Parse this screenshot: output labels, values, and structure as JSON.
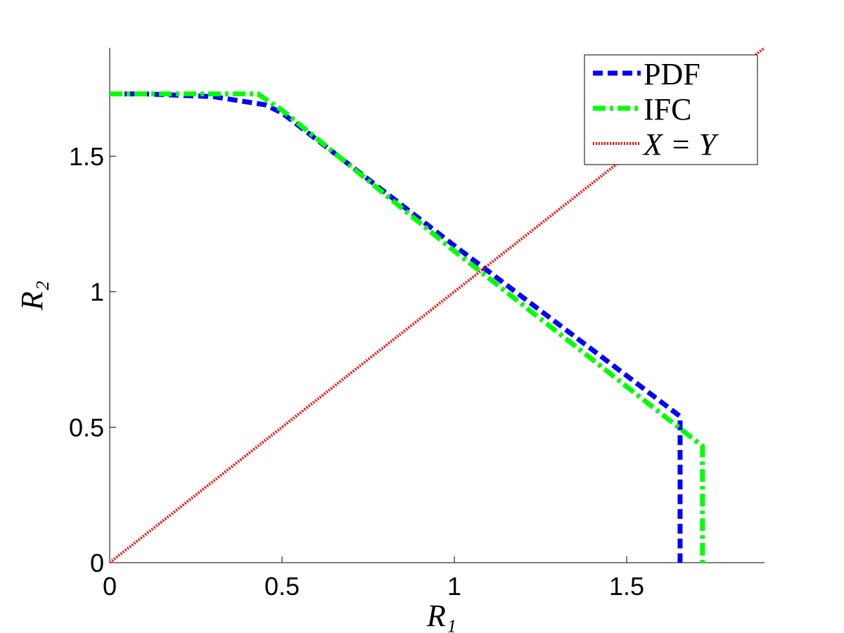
{
  "chart_data": {
    "type": "line",
    "xlabel": "R₁",
    "ylabel": "R₂",
    "xlim": [
      0,
      1.9
    ],
    "ylim": [
      0,
      1.9
    ],
    "xticks": [
      0,
      0.5,
      1,
      1.5
    ],
    "yticks": [
      0,
      0.5,
      1,
      1.5
    ],
    "legend": "upper right",
    "series": [
      {
        "name": "PDF",
        "color": "#0000ff",
        "style": "dashed",
        "x": [
          0,
          0.1,
          0.3,
          0.45,
          0.5,
          1,
          1.5,
          1.655,
          1.655
        ],
        "values": [
          1.73,
          1.73,
          1.72,
          1.69,
          1.66,
          1.17,
          0.69,
          0.54,
          0
        ]
      },
      {
        "name": "IFC",
        "color": "#00ff00",
        "style": "dashdot",
        "x": [
          0,
          0.43,
          0.5,
          1,
          1.5,
          1.72,
          1.72
        ],
        "values": [
          1.73,
          1.73,
          1.67,
          1.15,
          0.65,
          0.43,
          0
        ]
      },
      {
        "name": "X = Y",
        "color": "#ff0000",
        "style": "dotted",
        "x": [
          0,
          1.9
        ],
        "values": [
          0,
          1.9
        ]
      }
    ]
  }
}
